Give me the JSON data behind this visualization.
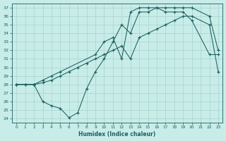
{
  "xlabel": "Humidex (Indice chaleur)",
  "bg_color": "#c8ece8",
  "grid_color": "#a8d4ce",
  "line_color": "#1a6060",
  "xlim": [
    -0.5,
    23.5
  ],
  "ylim": [
    23.5,
    37.5
  ],
  "yticks": [
    24,
    25,
    26,
    27,
    28,
    29,
    30,
    31,
    32,
    33,
    34,
    35,
    36,
    37
  ],
  "xticks": [
    0,
    1,
    2,
    3,
    4,
    5,
    6,
    7,
    8,
    9,
    10,
    11,
    12,
    13,
    14,
    15,
    16,
    17,
    18,
    19,
    20,
    21,
    22,
    23
  ],
  "line1_x": [
    0,
    1,
    2,
    3,
    4,
    5,
    6,
    7,
    8,
    9,
    10,
    11,
    12,
    13,
    14,
    15,
    16,
    17,
    18,
    19,
    20,
    22,
    23
  ],
  "line1_y": [
    28,
    28,
    28,
    26,
    25.5,
    25.2,
    24.1,
    24.7,
    27.5,
    29.5,
    31,
    33,
    35,
    34,
    36.5,
    36.5,
    37,
    36.5,
    36.5,
    36.5,
    35.5,
    31.5,
    31.5
  ],
  "line2_x": [
    0,
    1,
    2,
    3,
    4,
    5,
    6,
    7,
    8,
    9,
    10,
    11,
    12,
    13,
    14,
    15,
    16,
    17,
    18,
    19,
    20,
    22,
    23
  ],
  "line2_y": [
    28,
    28,
    28,
    28.2,
    28.5,
    29,
    29.5,
    30,
    30.5,
    31,
    31.5,
    32,
    32.5,
    31,
    33.5,
    34,
    34.5,
    35,
    35.5,
    36,
    36,
    35,
    29.5
  ],
  "line3_x": [
    0,
    2,
    3,
    4,
    5,
    9,
    10,
    11,
    12,
    13,
    14,
    15,
    16,
    17,
    18,
    19,
    20,
    22,
    23
  ],
  "line3_y": [
    28,
    28,
    28.5,
    29,
    29.5,
    31.5,
    33,
    33.5,
    31,
    36.5,
    37,
    37,
    37,
    37,
    37,
    37,
    37,
    36,
    32
  ]
}
